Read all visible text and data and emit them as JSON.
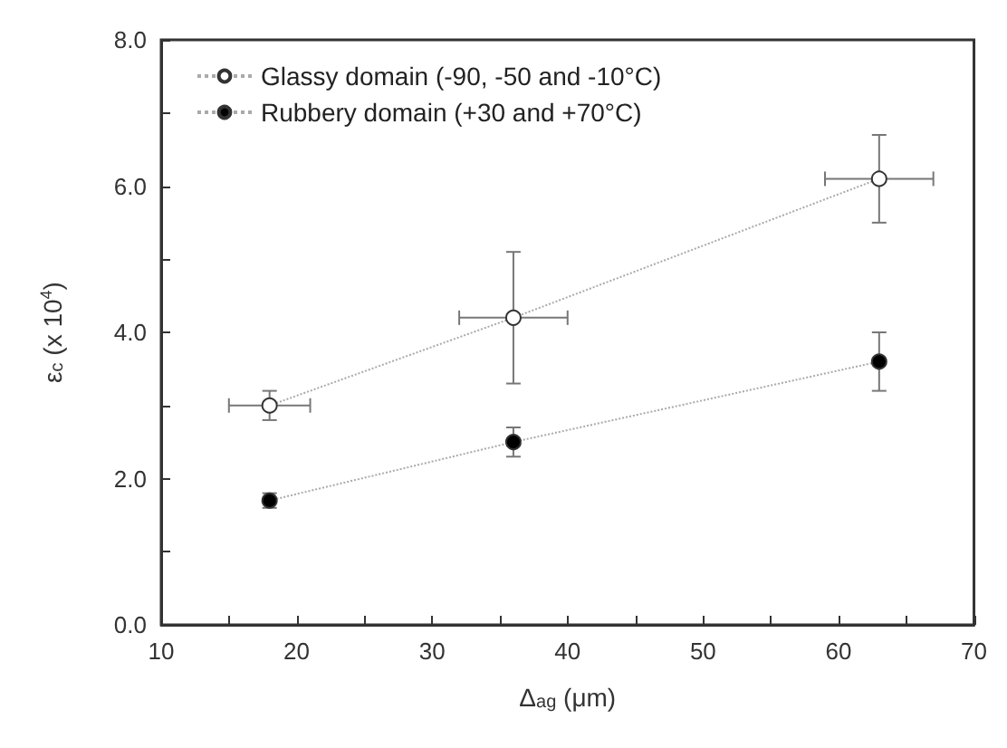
{
  "chart_data": {
    "type": "line",
    "xlabel": "Δ$_{ag}$ (μm)",
    "ylabel": "ε$_{c}$ (x 10$^{4}$)",
    "xlim": [
      10,
      70
    ],
    "xticks": [
      10,
      {
        "value": 15,
        "label": null
      },
      20,
      {
        "value": 25,
        "label": null
      },
      30,
      {
        "value": 35,
        "label": null
      },
      40,
      {
        "value": 45,
        "label": null
      },
      50,
      {
        "value": 55,
        "label": null
      },
      60,
      {
        "value": 65,
        "label": null
      },
      70
    ],
    "ylim": [
      0,
      8
    ],
    "yticks": [
      {
        "value": 0,
        "label": "0.0"
      },
      {
        "value": 1,
        "label": null
      },
      {
        "value": 2,
        "label": "2.0"
      },
      {
        "value": 3,
        "label": null
      },
      {
        "value": 4,
        "label": "4.0"
      },
      {
        "value": 5,
        "label": null
      },
      {
        "value": 6,
        "label": "6.0"
      },
      {
        "value": 7,
        "label": null
      },
      {
        "value": 8,
        "label": "8.0"
      }
    ],
    "x": [
      18,
      36,
      63
    ],
    "marker": "circle",
    "line_style": "dotted",
    "legend": "top left",
    "grid": false,
    "series": [
      {
        "name": "Glassy domain (-90, -50 and -10°C)",
        "color": "#ffffff",
        "values": [
          3.0,
          4.2,
          6.1
        ],
        "errors": [
          0.2,
          0.9,
          0.6
        ],
        "xerrors": [
          3,
          4,
          4
        ]
      },
      {
        "name": "Rubbery domain (+30 and +70°C)",
        "color": "#000000",
        "values": [
          1.7,
          2.5,
          3.6
        ],
        "errors": [
          0.1,
          0.2,
          0.4
        ]
      }
    ]
  }
}
